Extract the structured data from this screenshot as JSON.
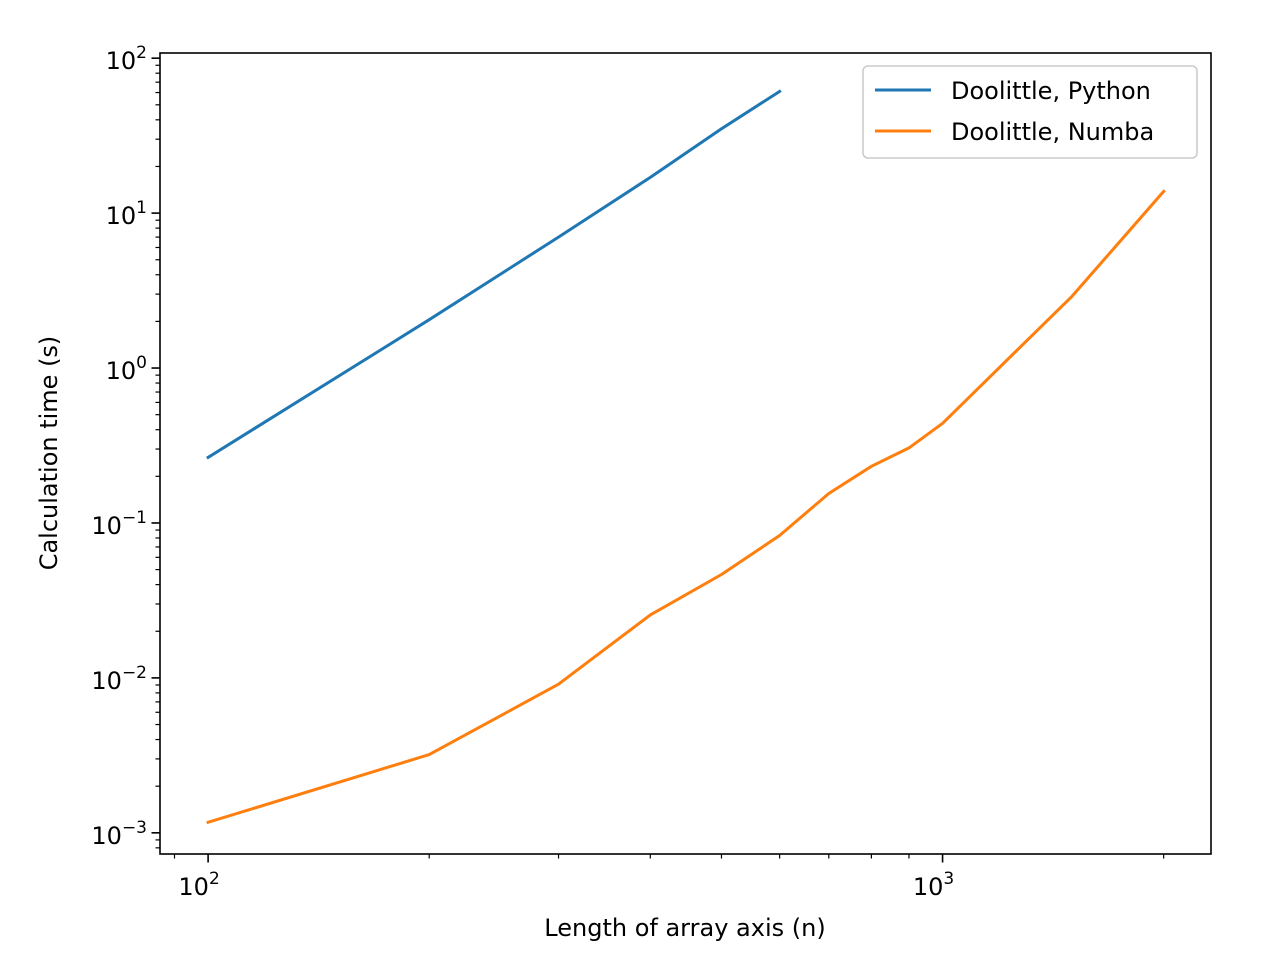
{
  "chart_data": {
    "type": "line",
    "title": "",
    "xlabel": "Length of array axis (n)",
    "ylabel": "Calculation time (s)",
    "xscale": "log",
    "yscale": "log",
    "xlim": [
      86,
      2320
    ],
    "ylim": [
      0.00073,
      108
    ],
    "x_ticks": [
      {
        "value": 100,
        "base": "10",
        "exp": "2"
      },
      {
        "value": 1000,
        "base": "10",
        "exp": "3"
      }
    ],
    "y_ticks": [
      {
        "value": 0.001,
        "base": "10",
        "exp": "−3"
      },
      {
        "value": 0.01,
        "base": "10",
        "exp": "−2"
      },
      {
        "value": 0.1,
        "base": "10",
        "exp": "−1"
      },
      {
        "value": 1,
        "base": "10",
        "exp": "0"
      },
      {
        "value": 10,
        "base": "10",
        "exp": "1"
      },
      {
        "value": 100,
        "base": "10",
        "exp": "2"
      }
    ],
    "grid": false,
    "legend_position": "top-right",
    "series": [
      {
        "name": "Doolittle, Python",
        "color": "#1f77b4",
        "x": [
          100,
          200,
          300,
          400,
          500,
          600
        ],
        "y": [
          0.265,
          2.05,
          7.0,
          17.0,
          35.0,
          61.0
        ]
      },
      {
        "name": "Doolittle, Numba",
        "color": "#ff7f0e",
        "x": [
          100,
          200,
          300,
          400,
          500,
          600,
          700,
          800,
          900,
          1000,
          1500,
          2000
        ],
        "y": [
          0.00117,
          0.0032,
          0.0091,
          0.0255,
          0.0465,
          0.083,
          0.155,
          0.232,
          0.305,
          0.44,
          2.9,
          13.8
        ]
      }
    ]
  }
}
